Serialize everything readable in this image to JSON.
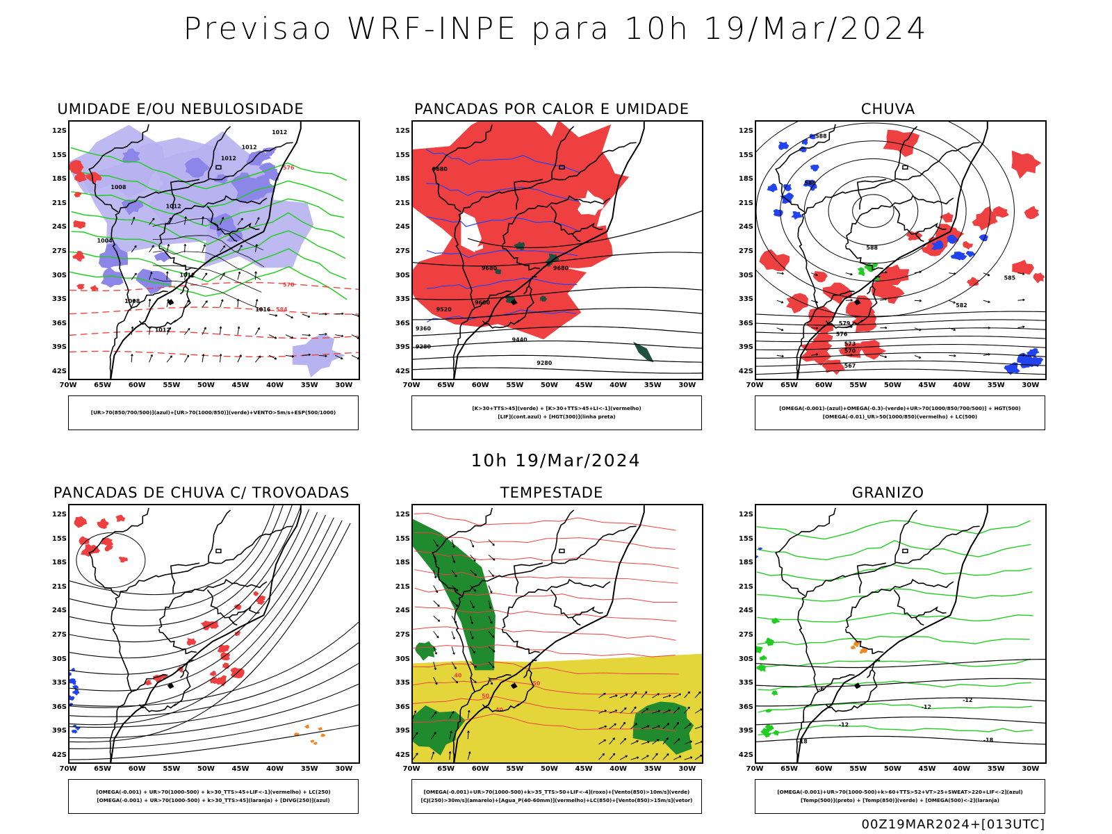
{
  "header": {
    "title": "Previsao WRF-INPE  para 10h 19/Mar/2024"
  },
  "middle_title": "10h 19/Mar/2024",
  "footer": "00Z19MAR2024+[013UTC]",
  "axes": {
    "lat_labels": [
      "12S",
      "15S",
      "18S",
      "21S",
      "24S",
      "27S",
      "30S",
      "33S",
      "36S",
      "39S",
      "42S"
    ],
    "lon_labels": [
      "70W",
      "65W",
      "60W",
      "55W",
      "50W",
      "45W",
      "40W",
      "35W",
      "30W"
    ]
  },
  "panels": [
    {
      "title": "UMIDADE E/OU NEBULOSIDADE",
      "legend": [
        "[UR>70(850/700/500)](azul)+[UR>70(1000/850)](verde)+VENTO>5m/s+ESP(500/1000)"
      ],
      "labels": [
        "1012",
        "1012",
        "1012",
        "1012",
        "1008",
        "1012",
        "1016",
        "1012",
        "1008",
        "1004",
        "570",
        "576",
        "584"
      ]
    },
    {
      "title": "PANCADAS POR CALOR E UMIDADE",
      "legend": [
        "[K>30+TTS>45](verde) + [K>30+TTS>45+LI<-1](vermelho)",
        "[LIF](cont.azul) + [HGT(300)](linha preta)"
      ],
      "labels": [
        "9680",
        "9680",
        "9680",
        "9600",
        "9520",
        "9440",
        "9360",
        "9280",
        "9280"
      ]
    },
    {
      "title": "CHUVA",
      "legend": [
        "[OMEGA(-0.001)-(azul)+OMEGA(-0.3)-(verde)+UR>70(1000/850/700/500)] + HGT(500)",
        "[OMEGA(-0.01)_UR>50(1000/850)(vermelho) + LC(500)"
      ],
      "labels": [
        "588",
        "588",
        "588",
        "585",
        "582",
        "579",
        "576",
        "573",
        "570",
        "567"
      ]
    },
    {
      "title": "PANCADAS DE CHUVA C/ TROVOADAS",
      "legend": [
        "[OMEGA(-0.001) + UR>70(1000-500) + k>30_TTS>45+LIF<-1](vermelho) + LC(250)",
        "[OMEGA(-0.001) + UR>70(1000-500) + k>30_TTS>45](laranja) + [DIVG(250)](azul)"
      ],
      "labels": []
    },
    {
      "title": "TEMPESTADE",
      "legend": [
        "[OMEGA(-0.001)+UR>70(1000-500)+k>35_TTS>50+LIF<-4](roxo)+[Vento(850)>10m/s](verde)",
        "[CJ(250)>30m/s](amarelo)+[Agua_P(40-60mm)](vermelho)+LC(850)+[Vento(850)>15m/s](vetor)"
      ],
      "labels": [
        "40",
        "50",
        "50",
        "40"
      ]
    },
    {
      "title": "GRANIZO",
      "legend": [
        "[OMEGA(-0.001)+UR>70(1000-500)+k>60+TTS>52+VT>25+SWEAT>220+LIF<-2](azul)",
        "[Temp(500)](preto) + [Temp(850)](verde) + [OMEGA(500)<-2](laranja)"
      ],
      "labels": [
        "-6",
        "-12",
        "-12",
        "-12",
        "-18",
        "-18"
      ]
    }
  ],
  "colors": {
    "blue_shade": "#b7b3f0",
    "blue_dark": "#8c86e8",
    "green": "#22cc22",
    "red": "#ee4040",
    "yellow": "#e4d63a",
    "dark_green": "#1f8a2e",
    "line_blue": "#2244ee",
    "orange": "#ee8822"
  }
}
